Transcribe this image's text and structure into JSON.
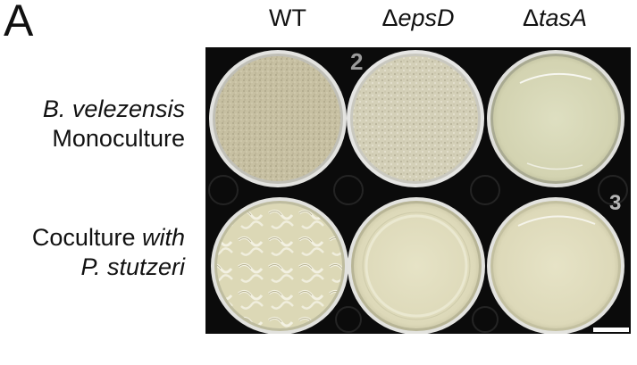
{
  "panel_label": "A",
  "columns": [
    {
      "delta": "",
      "gene": "",
      "plain": "WT"
    },
    {
      "delta": "Δ",
      "gene": "epsD",
      "plain": ""
    },
    {
      "delta": "Δ",
      "gene": "tasA",
      "plain": ""
    }
  ],
  "rows": [
    {
      "line1_italic": "B. velezensis",
      "line1_plain": "",
      "line2_plain": "Monoculture",
      "line2_italic": ""
    },
    {
      "line1_plain": "Coculture ",
      "line1_italic": "with",
      "line2_italic": "P. stutzeri",
      "line2_plain": ""
    }
  ],
  "plate_markings": [
    "2",
    "3"
  ],
  "colors": {
    "background": "#ffffff",
    "plate_tray": "#0b0b0b",
    "wt_mono_colony": "#c9c2a4",
    "epsd_mono_colony": "#d6d2bb",
    "tasa_mono_agar": "#dcdcb9",
    "coculture_agar": "#e2dfbf"
  }
}
